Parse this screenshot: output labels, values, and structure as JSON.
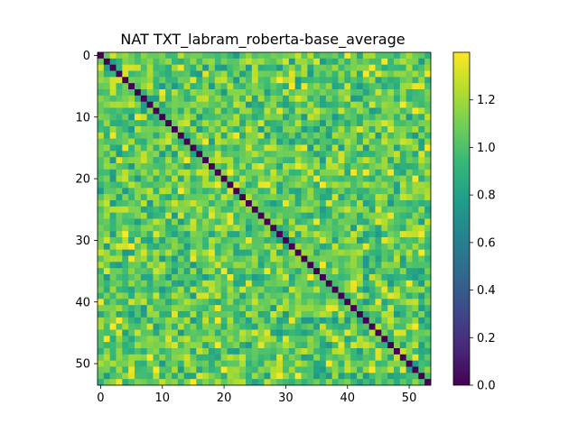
{
  "chart_data": {
    "type": "heatmap",
    "title": "NAT TXT_labram_roberta-base_average",
    "xlabel": "",
    "ylabel": "",
    "size": 54,
    "x_ticks": [
      "0",
      "10",
      "20",
      "30",
      "40",
      "50"
    ],
    "y_ticks": [
      "0",
      "10",
      "20",
      "30",
      "40",
      "50"
    ],
    "x_tick_values": [
      0,
      10,
      20,
      30,
      40,
      50
    ],
    "y_tick_values": [
      0,
      10,
      20,
      30,
      40,
      50
    ],
    "diagonal_value": 0.0,
    "off_diagonal_typical_range": [
      0.75,
      1.4
    ],
    "off_diagonal_mean": 1.05,
    "value_range": [
      0.0,
      1.4
    ],
    "colormap": "viridis",
    "colorbar": {
      "ticks": [
        "0.0",
        "0.2",
        "0.4",
        "0.6",
        "0.8",
        "1.0",
        "1.2"
      ],
      "tick_values": [
        0.0,
        0.2,
        0.4,
        0.6,
        0.8,
        1.0,
        1.2
      ],
      "range": [
        0.0,
        1.4
      ]
    },
    "colors": {
      "viridis_stops": [
        "#440154",
        "#482878",
        "#3e4989",
        "#31688e",
        "#26828e",
        "#1f9e89",
        "#35b779",
        "#6ece58",
        "#b5de2b",
        "#fde725"
      ]
    }
  }
}
